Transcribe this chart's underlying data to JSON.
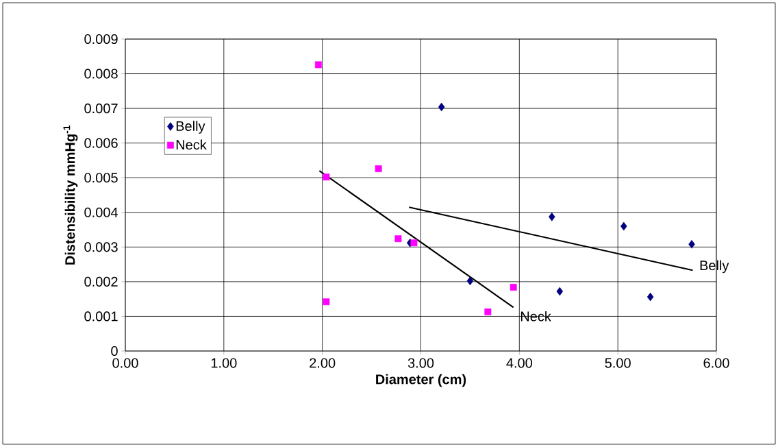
{
  "chart_data": {
    "type": "scatter",
    "xlabel": "Diameter (cm)",
    "ylabel": "Distensibility mmHg$^{-1}$",
    "xlim": [
      0,
      6
    ],
    "ylim": [
      0,
      0.009
    ],
    "xticks": [
      {
        "value": 0,
        "label": "0.00"
      },
      {
        "value": 1,
        "label": "1.00"
      },
      {
        "value": 2,
        "label": "2.00"
      },
      {
        "value": 3,
        "label": "3.00"
      },
      {
        "value": 4,
        "label": "4.00"
      },
      {
        "value": 5,
        "label": "5.00"
      },
      {
        "value": 6,
        "label": "6.00"
      }
    ],
    "yticks": [
      0,
      0.001,
      0.002,
      0.003,
      0.004,
      0.005,
      0.006,
      0.007,
      0.008,
      0.009
    ],
    "grid": true,
    "legend": "left",
    "series": [
      {
        "name": "Belly",
        "marker": "diamond",
        "color": "#000080",
        "x": [
          3.21,
          2.89,
          3.5,
          4.33,
          4.41,
          5.06,
          5.33,
          5.75
        ],
        "values": [
          0.00704,
          0.00312,
          0.00202,
          0.00387,
          0.00172,
          0.0036,
          0.00156,
          0.00308
        ]
      },
      {
        "name": "Neck",
        "marker": "square",
        "color": "#ff00ff",
        "x": [
          1.96,
          2.04,
          2.57,
          2.77,
          2.93,
          2.04,
          3.68,
          3.94
        ],
        "values": [
          0.00826,
          0.00502,
          0.00526,
          0.00324,
          0.00312,
          0.00142,
          0.00113,
          0.00184
        ]
      },
      {
        "name": "Neck",
        "type": "line",
        "marker": "none",
        "color": "#000000",
        "x": [
          1.97,
          3.94
        ],
        "values": [
          0.0052,
          0.00126
        ]
      },
      {
        "name": "Belly",
        "type": "line",
        "marker": "none",
        "color": "#000000",
        "x": [
          2.88,
          5.76
        ],
        "values": [
          0.00415,
          0.00233
        ]
      }
    ]
  }
}
